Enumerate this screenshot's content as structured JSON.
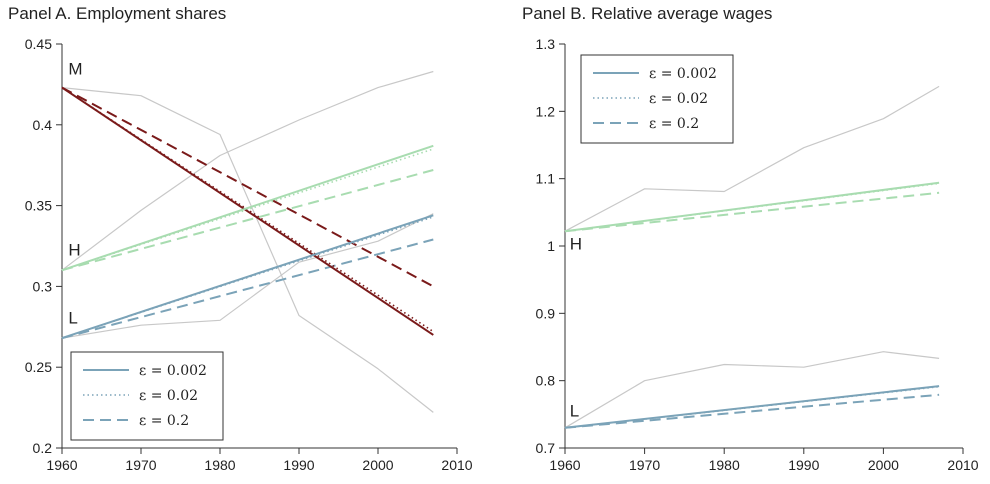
{
  "chart_data": [
    {
      "type": "line",
      "title": "Panel A. Employment shares",
      "xlabel": "",
      "ylabel": "",
      "xlim": [
        1960,
        2010
      ],
      "ylim": [
        0.2,
        0.45
      ],
      "xticks": [
        1960,
        1970,
        1980,
        1990,
        2000,
        2010
      ],
      "xtick_labels": [
        "1960",
        "1970",
        "1980",
        "1990",
        "2000",
        "2010"
      ],
      "yticks": [
        0.2,
        0.25,
        0.3,
        0.35,
        0.4,
        0.45
      ],
      "ytick_labels": [
        "0.2",
        "0.25",
        "0.3",
        "0.35",
        "0.4",
        "0.45"
      ],
      "legend": {
        "placement": "bottom-left",
        "entries": [
          {
            "label": "ε = 0.002",
            "style": "solid",
            "color": "#7ba3b8"
          },
          {
            "label": "ε = 0.02",
            "style": "dotted",
            "color": "#7ba3b8"
          },
          {
            "label": "ε = 0.2",
            "style": "dashed",
            "color": "#7ba3b8"
          }
        ]
      },
      "groups": [
        {
          "label": "M",
          "color": "#7a1a1a",
          "label_at": [
            1960.8,
            0.431
          ],
          "data": [
            {
              "x": [
                1960,
                1970,
                1980,
                1990,
                2000,
                2007
              ],
              "y": [
                0.423,
                0.418,
                0.394,
                0.282,
                0.249,
                0.222
              ],
              "style": "data"
            },
            {
              "x": [
                1960,
                2007
              ],
              "y": [
                0.423,
                0.27
              ],
              "style": "solid"
            },
            {
              "x": [
                1960,
                2007
              ],
              "y": [
                0.423,
                0.272
              ],
              "style": "dotted"
            },
            {
              "x": [
                1960,
                2007
              ],
              "y": [
                0.423,
                0.3
              ],
              "style": "dashed"
            }
          ]
        },
        {
          "label": "H",
          "color": "#a8dcb0",
          "label_at": [
            1960.8,
            0.319
          ],
          "data": [
            {
              "x": [
                1960,
                1970,
                1980,
                1990,
                2000,
                2007
              ],
              "y": [
                0.31,
                0.347,
                0.381,
                0.403,
                0.423,
                0.433
              ],
              "style": "data"
            },
            {
              "x": [
                1960,
                2007
              ],
              "y": [
                0.31,
                0.387
              ],
              "style": "solid"
            },
            {
              "x": [
                1960,
                2007
              ],
              "y": [
                0.31,
                0.385
              ],
              "style": "dotted"
            },
            {
              "x": [
                1960,
                2007
              ],
              "y": [
                0.31,
                0.372
              ],
              "style": "dashed"
            }
          ]
        },
        {
          "label": "L",
          "color": "#7ba3b8",
          "label_at": [
            1960.8,
            0.277
          ],
          "data": [
            {
              "x": [
                1960,
                1970,
                1980,
                1990,
                2000,
                2007
              ],
              "y": [
                0.268,
                0.276,
                0.279,
                0.315,
                0.328,
                0.345
              ],
              "style": "data"
            },
            {
              "x": [
                1960,
                2007
              ],
              "y": [
                0.268,
                0.344
              ],
              "style": "solid"
            },
            {
              "x": [
                1960,
                2007
              ],
              "y": [
                0.268,
                0.343
              ],
              "style": "dotted"
            },
            {
              "x": [
                1960,
                2007
              ],
              "y": [
                0.268,
                0.329
              ],
              "style": "dashed"
            }
          ]
        }
      ]
    },
    {
      "type": "line",
      "title": "Panel B. Relative average wages",
      "xlabel": "",
      "ylabel": "",
      "xlim": [
        1960,
        2010
      ],
      "ylim": [
        0.7,
        1.3
      ],
      "xticks": [
        1960,
        1970,
        1980,
        1990,
        2000,
        2010
      ],
      "xtick_labels": [
        "1960",
        "1970",
        "1980",
        "1990",
        "2000",
        "2010"
      ],
      "yticks": [
        0.7,
        0.8,
        0.9,
        1.0,
        1.1,
        1.2,
        1.3
      ],
      "ytick_labels": [
        "0.7",
        "0.8",
        "0.9",
        "1",
        "1.1",
        "1.2",
        "1.3"
      ],
      "legend": {
        "placement": "top-left",
        "entries": [
          {
            "label": "ε = 0.002",
            "style": "solid",
            "color": "#7ba3b8"
          },
          {
            "label": "ε = 0.02",
            "style": "dotted",
            "color": "#7ba3b8"
          },
          {
            "label": "ε = 0.2",
            "style": "dashed",
            "color": "#7ba3b8"
          }
        ]
      },
      "groups": [
        {
          "label": "H",
          "color": "#a8dcb0",
          "label_at": [
            1960.6,
            0.995
          ],
          "data": [
            {
              "x": [
                1960,
                1970,
                1980,
                1990,
                2000,
                2007
              ],
              "y": [
                1.022,
                1.085,
                1.081,
                1.146,
                1.189,
                1.237
              ],
              "style": "data"
            },
            {
              "x": [
                1960,
                2007
              ],
              "y": [
                1.022,
                1.094
              ],
              "style": "solid"
            },
            {
              "x": [
                1960,
                2007
              ],
              "y": [
                1.022,
                1.093
              ],
              "style": "dotted"
            },
            {
              "x": [
                1960,
                2007
              ],
              "y": [
                1.022,
                1.079
              ],
              "style": "dashed"
            }
          ]
        },
        {
          "label": "L",
          "color": "#7ba3b8",
          "label_at": [
            1960.6,
            0.747
          ],
          "data": [
            {
              "x": [
                1960,
                1970,
                1980,
                1990,
                2000,
                2007
              ],
              "y": [
                0.73,
                0.8,
                0.824,
                0.82,
                0.843,
                0.833
              ],
              "style": "data"
            },
            {
              "x": [
                1960,
                2007
              ],
              "y": [
                0.73,
                0.792
              ],
              "style": "solid"
            },
            {
              "x": [
                1960,
                2007
              ],
              "y": [
                0.73,
                0.791
              ],
              "style": "dotted"
            },
            {
              "x": [
                1960,
                2007
              ],
              "y": [
                0.73,
                0.779
              ],
              "style": "dashed"
            }
          ]
        }
      ]
    }
  ]
}
